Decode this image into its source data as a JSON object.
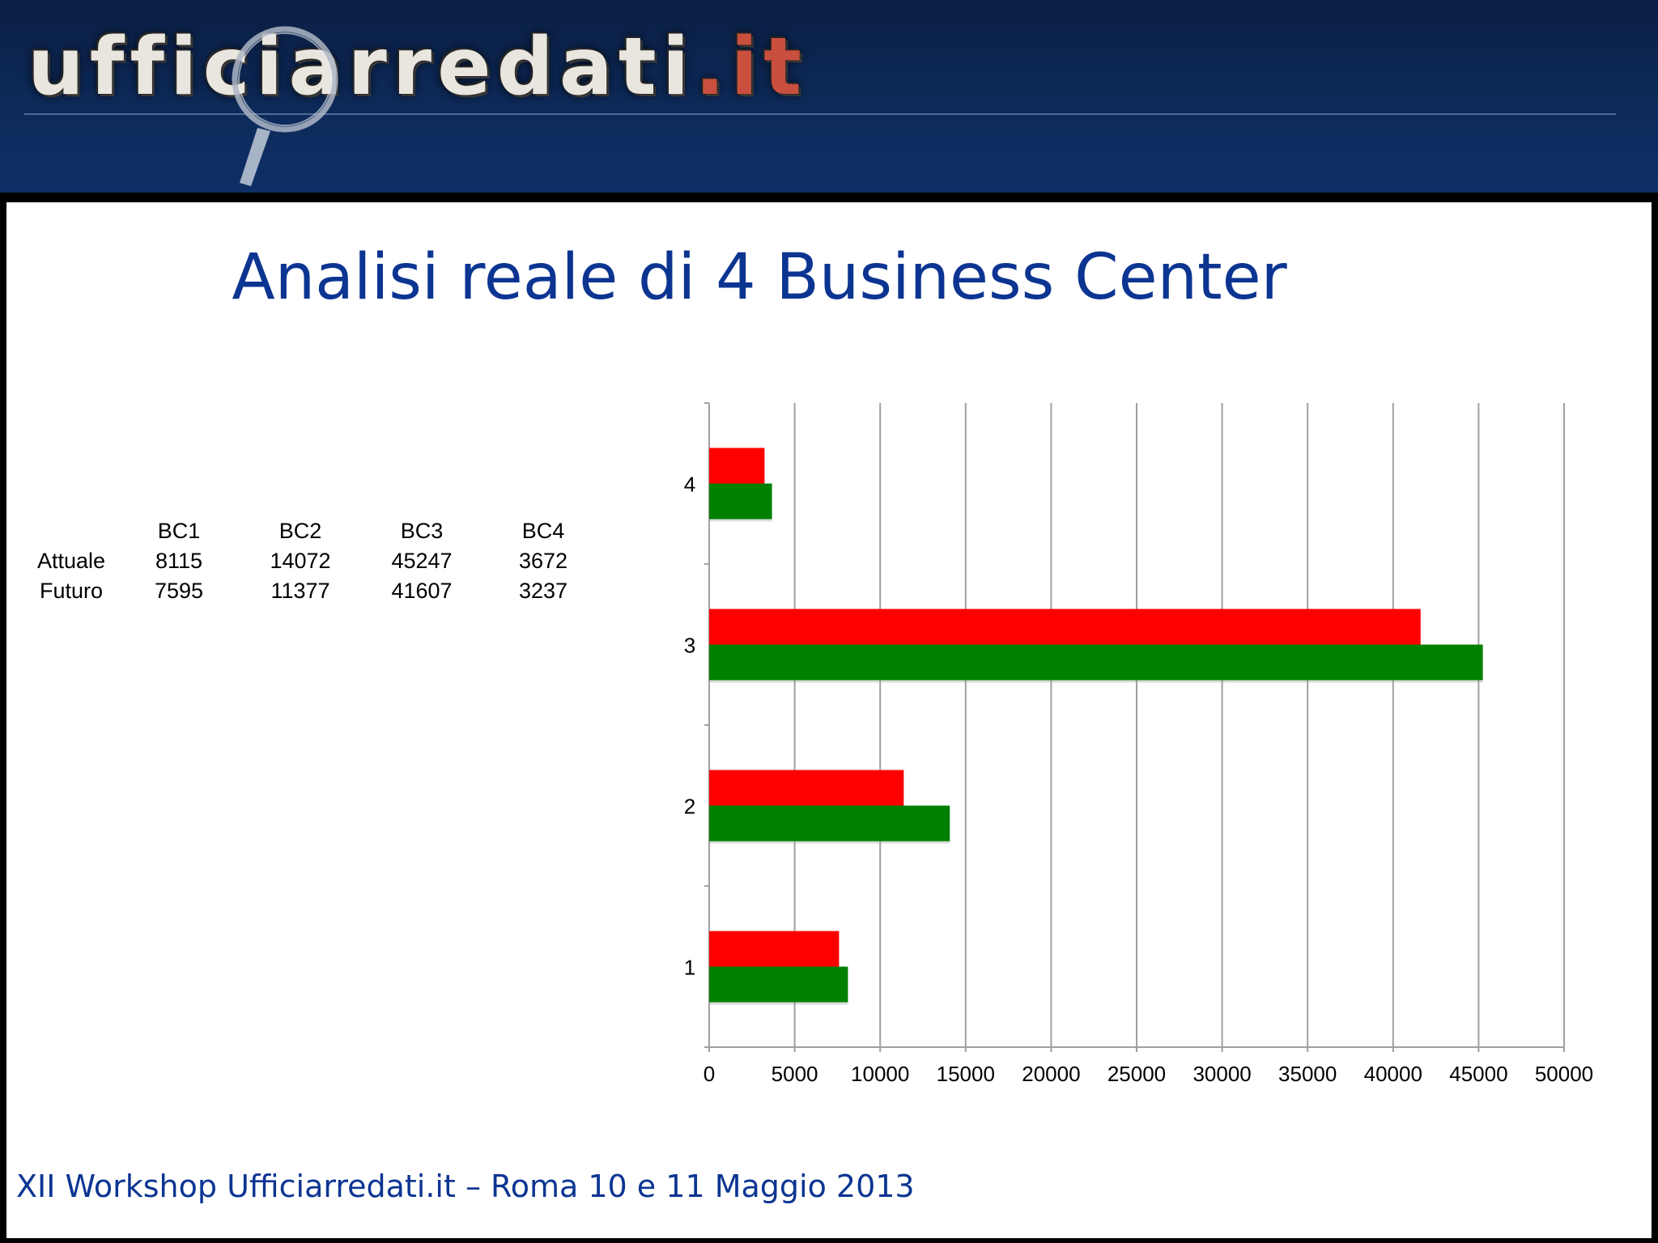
{
  "header": {
    "logo_main": "ufficiarredati",
    "logo_tld": ".it"
  },
  "slide": {
    "title": "Analisi reale di 4 Business Center",
    "footer": "XII Workshop Ufficiarredati.it – Roma 10 e 11 Maggio 2013"
  },
  "table": {
    "columns": [
      "BC1",
      "BC2",
      "BC3",
      "BC4"
    ],
    "rows": [
      {
        "label": "Attuale",
        "values": [
          "8115",
          "14072",
          "45247",
          "3672"
        ]
      },
      {
        "label": "Futuro",
        "values": [
          "7595",
          "11377",
          "41607",
          "3237"
        ]
      }
    ]
  },
  "colors": {
    "header_bg": "#0d2a5a",
    "title": "#0c3592",
    "attuale": "#008000",
    "futuro": "#ff0000",
    "grid": "#a0a0a0"
  },
  "chart_data": {
    "type": "bar",
    "orientation": "horizontal",
    "categories": [
      "1",
      "2",
      "3",
      "4"
    ],
    "series": [
      {
        "values": [
          7595,
          11377,
          41607,
          3237
        ],
        "color": "#ff0000"
      },
      {
        "values": [
          8115,
          14072,
          45247,
          3672
        ],
        "color": "#008000"
      }
    ],
    "xlim": [
      0,
      50000
    ],
    "x_ticks": [
      0,
      5000,
      10000,
      15000,
      20000,
      25000,
      30000,
      35000,
      40000,
      45000,
      50000
    ],
    "grid": "vertical",
    "legend": "none"
  }
}
